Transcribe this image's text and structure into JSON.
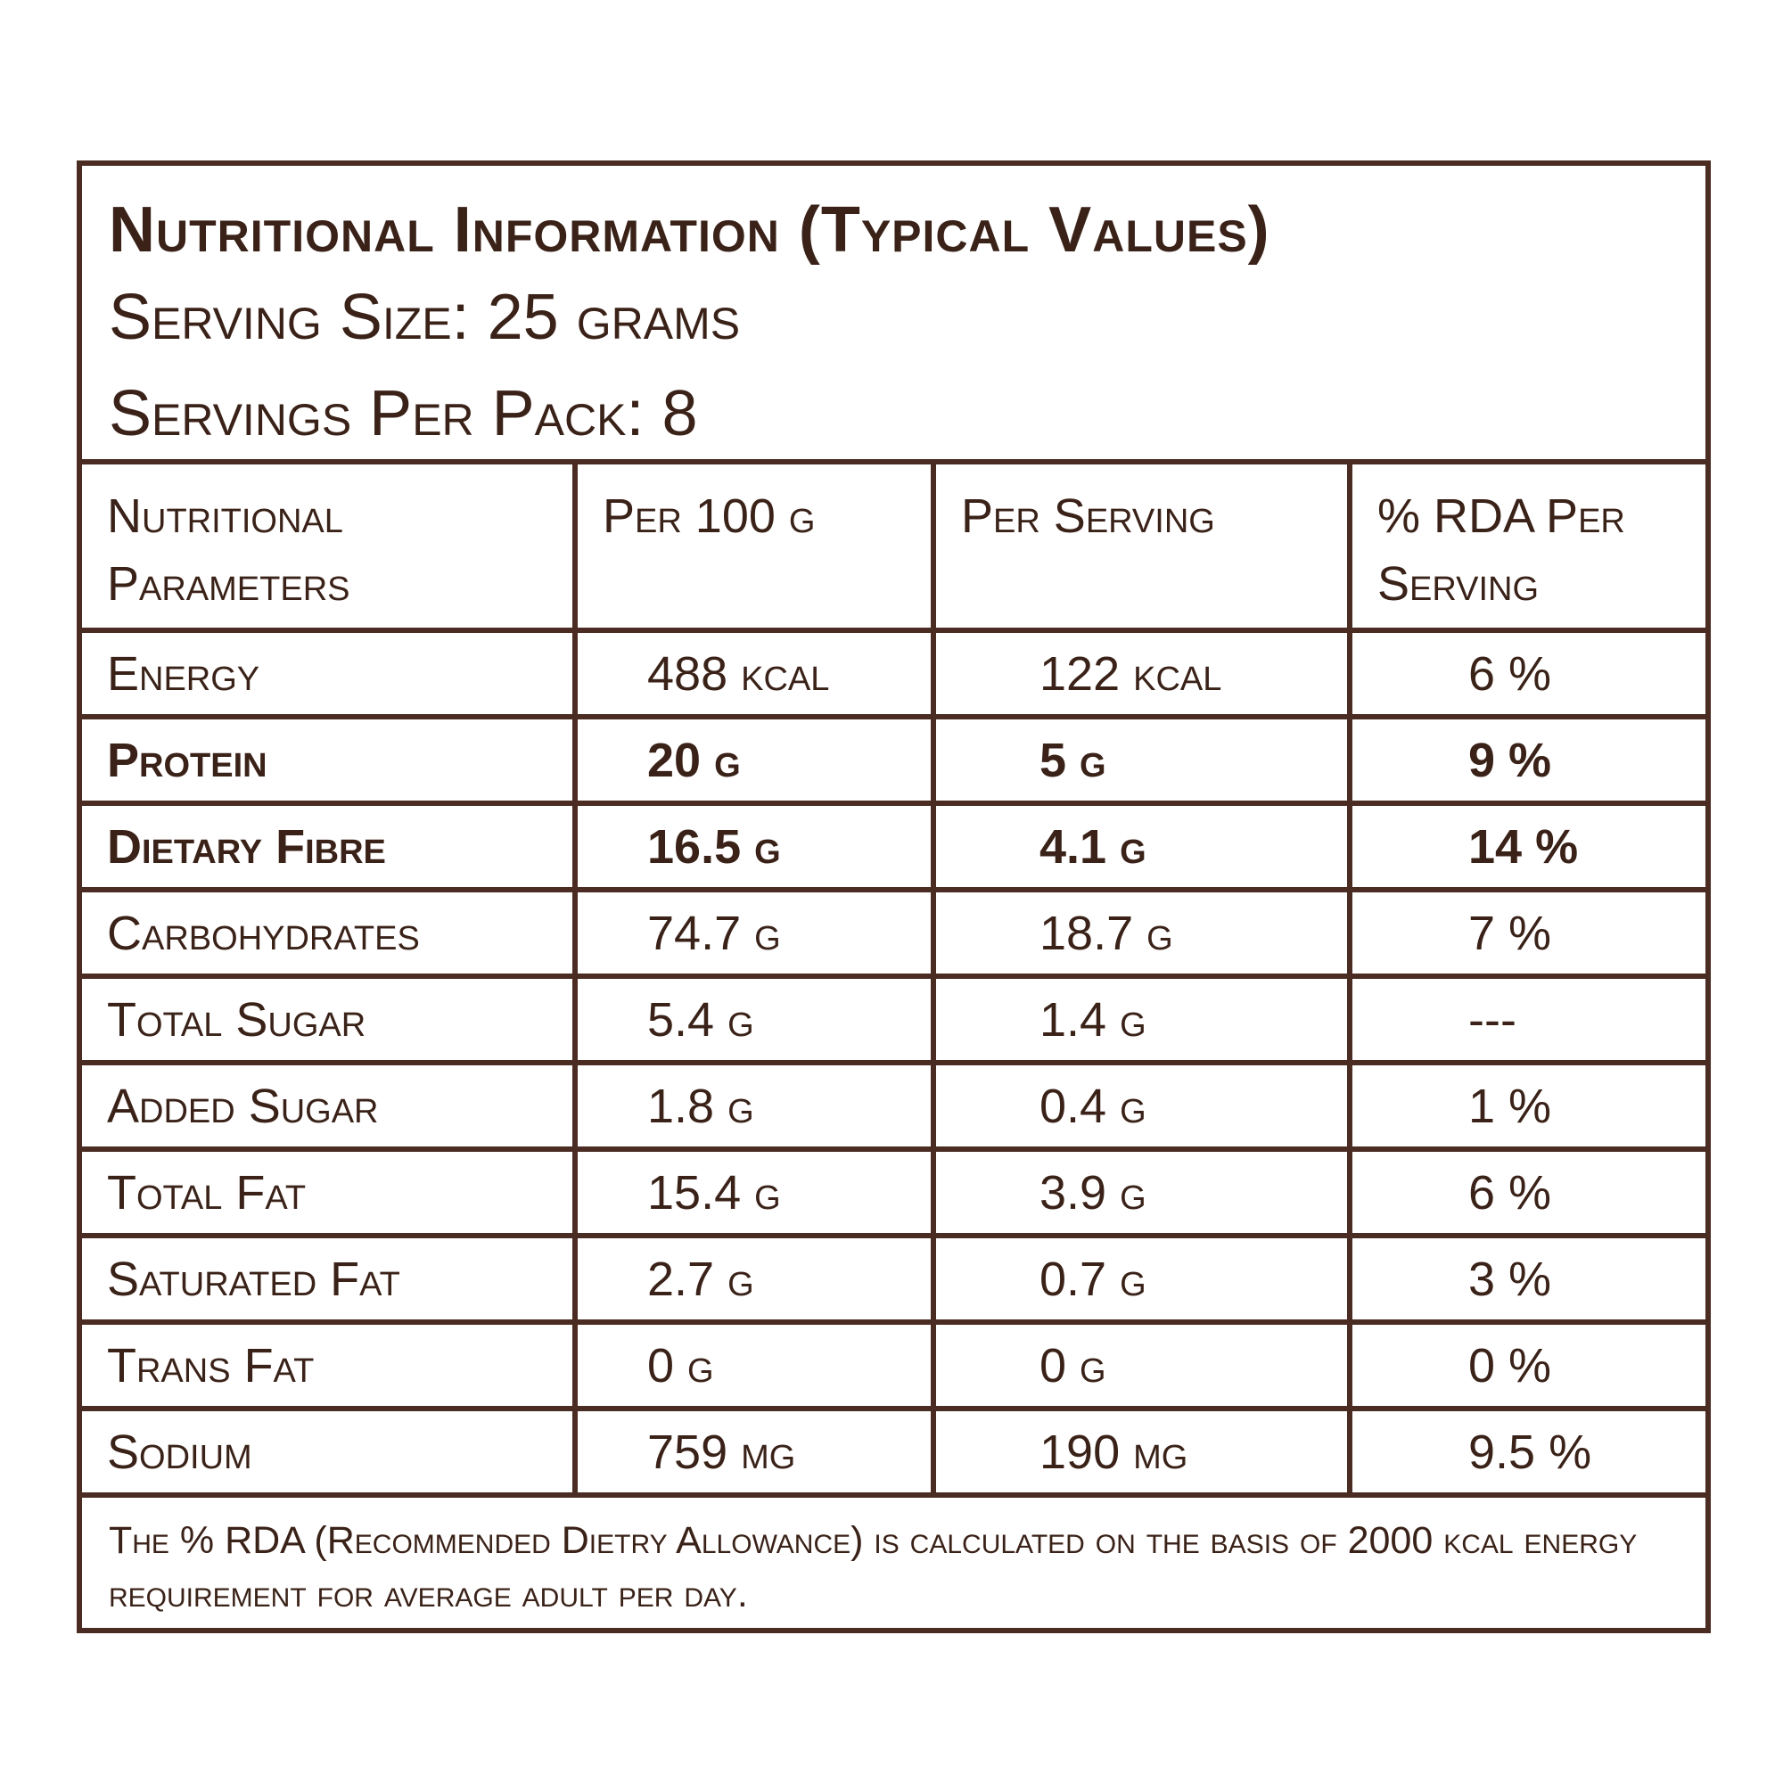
{
  "header": {
    "title": "Nutritional Information (Typical Values)",
    "serving_size": "Serving Size: 25 grams",
    "servings_per_pack": "Servings Per Pack: 8"
  },
  "table": {
    "columns": [
      "Nutritional Parameters",
      "Per 100 g",
      "Per Serving",
      "% RDA Per Serving"
    ],
    "rows": [
      {
        "name": "Energy",
        "per100": "488 kcal",
        "perServing": "122 kcal",
        "rda": "6 %",
        "bold": false
      },
      {
        "name": "Protein",
        "per100": "20 g",
        "perServing": "5 g",
        "rda": "9 %",
        "bold": true
      },
      {
        "name": "Dietary Fibre",
        "per100": "16.5 g",
        "perServing": "4.1 g",
        "rda": "14 %",
        "bold": true
      },
      {
        "name": "Carbohydrates",
        "per100": "74.7 g",
        "perServing": "18.7 g",
        "rda": "7 %",
        "bold": false
      },
      {
        "name": "Total Sugar",
        "per100": "5.4 g",
        "perServing": "1.4 g",
        "rda": "---",
        "bold": false
      },
      {
        "name": "Added Sugar",
        "per100": "1.8 g",
        "perServing": "0.4 g",
        "rda": "1 %",
        "bold": false
      },
      {
        "name": "Total Fat",
        "per100": "15.4 g",
        "perServing": "3.9 g",
        "rda": "6 %",
        "bold": false
      },
      {
        "name": "Saturated Fat",
        "per100": "2.7 g",
        "perServing": "0.7 g",
        "rda": "3 %",
        "bold": false
      },
      {
        "name": "Trans Fat",
        "per100": "0 g",
        "perServing": "0 g",
        "rda": "0 %",
        "bold": false
      },
      {
        "name": "Sodium",
        "per100": "759 mg",
        "perServing": "190 mg",
        "rda": "9.5 %",
        "bold": false
      }
    ]
  },
  "footnote": "The %  RDA (Recommended Dietry Allowance) is calculated on the basis of 2000 kcal energy requirement for average adult per day.",
  "colors": {
    "text": "#3a2218",
    "border": "#4a2c22",
    "background": "#ffffff"
  }
}
